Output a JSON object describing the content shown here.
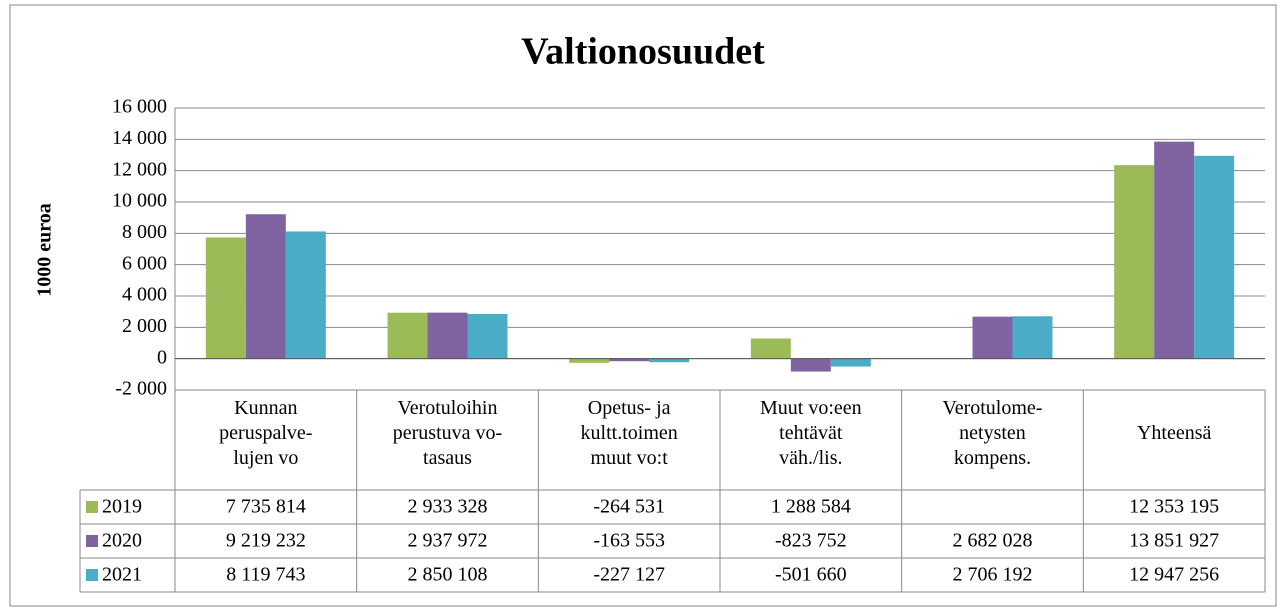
{
  "chart_data": {
    "type": "bar",
    "title": "Valtionosuudet",
    "y_label": "1000 euroa",
    "categories": [
      "Kunnan\nperuspalve-\nlujen vo",
      "Verotuloihin\nperustuva vo-\ntasaus",
      "Opetus- ja\nkultt.toimen\nmuut vo:t",
      "Muut vo:een\ntehtävät\nväh./lis.",
      "Verotulome-\nnetysten\nkompens.",
      "Yhteensä"
    ],
    "series": [
      {
        "name": "2019",
        "color": "#9bbb59",
        "values": [
          7735.814,
          2933.328,
          -264.531,
          1288.584,
          null,
          12353.195
        ],
        "value_labels": [
          "7 735 814",
          "2 933 328",
          "-264 531",
          "1 288 584",
          null,
          "12 353 195"
        ]
      },
      {
        "name": "2020",
        "color": "#8064a2",
        "values": [
          9219.232,
          2937.972,
          -163.553,
          -823.752,
          2682.028,
          13851.927
        ],
        "value_labels": [
          "9 219 232",
          "2 937 972",
          "-163 553",
          "-823 752",
          "2 682 028",
          "13 851 927"
        ]
      },
      {
        "name": "2021",
        "color": "#4bacc6",
        "values": [
          8119.743,
          2850.108,
          -227.127,
          -501.66,
          2706.192,
          12947.256
        ],
        "value_labels": [
          "8 119 743",
          "2 850 108",
          "-227 127",
          "-501 660",
          "2 706 192",
          "12 947 256"
        ]
      }
    ],
    "ylim": [
      -2000,
      16000
    ],
    "yticks": [
      {
        "value": -2000,
        "label": "-2 000"
      },
      0,
      {
        "value": 2000,
        "label": "2 000"
      },
      {
        "value": 4000,
        "label": "4 000"
      },
      {
        "value": 6000,
        "label": "6 000"
      },
      {
        "value": 8000,
        "label": "8 000"
      },
      {
        "value": 10000,
        "label": "10 000"
      },
      {
        "value": 12000,
        "label": "12 000"
      },
      {
        "value": 14000,
        "label": "14 000"
      },
      {
        "value": 16000,
        "label": "16 000"
      }
    ],
    "grid": true
  }
}
